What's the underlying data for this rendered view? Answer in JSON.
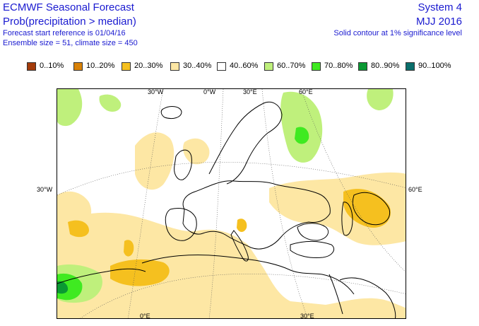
{
  "header": {
    "title": "ECMWF Seasonal Forecast",
    "subtitle": "Prob(precipitation > median)",
    "start_line": "Forecast start reference is 01/04/16",
    "ensemble_line": "Ensemble size = 51, climate size = 450",
    "system": "System 4",
    "period": "MJJ 2016",
    "note": "Solid contour at 1% significance level"
  },
  "legend": [
    {
      "label": "0..10%",
      "color": "#a33b0a"
    },
    {
      "label": "10..20%",
      "color": "#d98208"
    },
    {
      "label": "20..30%",
      "color": "#f5c01f"
    },
    {
      "label": "30..40%",
      "color": "#fde7a4"
    },
    {
      "label": "40..60%",
      "color": "#ffffff"
    },
    {
      "label": "60..70%",
      "color": "#bff07c"
    },
    {
      "label": "70..80%",
      "color": "#3fea21"
    },
    {
      "label": "80..90%",
      "color": "#0a9933"
    },
    {
      "label": "90..100%",
      "color": "#0a6f6c"
    }
  ],
  "grid_labels": {
    "top": [
      "30°W",
      "0°W",
      "30°E",
      "60°E"
    ],
    "left": "30°W",
    "right": "60°E",
    "bottom": [
      "0°E",
      "30°E"
    ]
  }
}
